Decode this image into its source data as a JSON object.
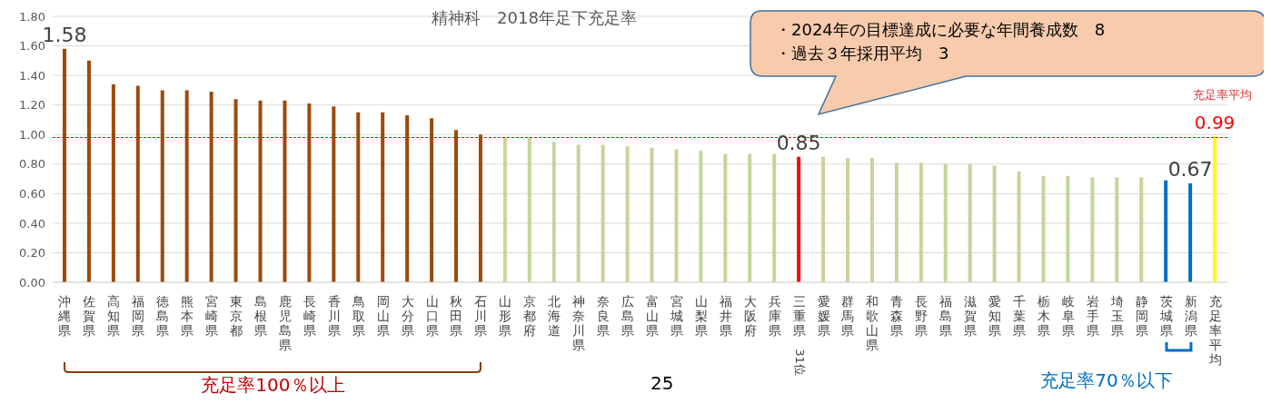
{
  "chart_data": {
    "type": "bar",
    "title": "精神科　2018年足下充足率",
    "categories": [
      "沖縄県",
      "佐賀県",
      "高知県",
      "福岡県",
      "徳島県",
      "熊本県",
      "宮崎県",
      "東京都",
      "島根県",
      "鹿児島県",
      "長崎県",
      "香川県",
      "鳥取県",
      "岡山県",
      "大分県",
      "山口県",
      "秋田県",
      "石川県",
      "山形県",
      "京都府",
      "北海道",
      "神奈川県",
      "奈良県",
      "広島県",
      "富山県",
      "宮城県",
      "山梨県",
      "福井県",
      "大阪府",
      "兵庫県",
      "三重県",
      "愛媛県",
      "群馬県",
      "和歌山県",
      "青森県",
      "長野県",
      "福島県",
      "滋賀県",
      "愛知県",
      "千葉県",
      "栃木県",
      "岐阜県",
      "岩手県",
      "埼玉県",
      "静岡県",
      "茨城県",
      "新潟県",
      "充足率平均"
    ],
    "values": [
      1.58,
      1.5,
      1.34,
      1.33,
      1.3,
      1.3,
      1.29,
      1.24,
      1.23,
      1.23,
      1.21,
      1.19,
      1.15,
      1.15,
      1.13,
      1.11,
      1.03,
      1.0,
      0.98,
      0.98,
      0.95,
      0.93,
      0.93,
      0.92,
      0.91,
      0.9,
      0.89,
      0.87,
      0.87,
      0.87,
      0.85,
      0.85,
      0.84,
      0.84,
      0.81,
      0.81,
      0.8,
      0.8,
      0.79,
      0.75,
      0.72,
      0.72,
      0.71,
      0.71,
      0.71,
      0.69,
      0.67,
      0.99
    ],
    "colors": [
      "#9c4a0c",
      "#9c4a0c",
      "#9c4a0c",
      "#9c4a0c",
      "#9c4a0c",
      "#9c4a0c",
      "#9c4a0c",
      "#9c4a0c",
      "#9c4a0c",
      "#9c4a0c",
      "#9c4a0c",
      "#9c4a0c",
      "#9c4a0c",
      "#9c4a0c",
      "#9c4a0c",
      "#9c4a0c",
      "#9c4a0c",
      "#9c4a0c",
      "#c3d69b",
      "#c3d69b",
      "#c3d69b",
      "#c3d69b",
      "#c3d69b",
      "#c3d69b",
      "#c3d69b",
      "#c3d69b",
      "#c3d69b",
      "#c3d69b",
      "#c3d69b",
      "#c3d69b",
      "#ff0000",
      "#c3d69b",
      "#c3d69b",
      "#c3d69b",
      "#c3d69b",
      "#c3d69b",
      "#c3d69b",
      "#c3d69b",
      "#c3d69b",
      "#c3d69b",
      "#c3d69b",
      "#c3d69b",
      "#c3d69b",
      "#c3d69b",
      "#c3d69b",
      "#0070c0",
      "#0070c0",
      "#ffff00"
    ],
    "value_labels": [
      "1.58",
      null,
      null,
      null,
      null,
      null,
      null,
      null,
      null,
      null,
      null,
      null,
      null,
      null,
      null,
      null,
      null,
      null,
      null,
      null,
      null,
      null,
      null,
      null,
      null,
      null,
      null,
      null,
      null,
      null,
      "0.85",
      null,
      null,
      null,
      null,
      null,
      null,
      null,
      null,
      null,
      null,
      null,
      null,
      null,
      null,
      null,
      "0.67",
      "0.99"
    ],
    "ylim": [
      0,
      1.8
    ],
    "yticks": [
      {
        "value": 0,
        "label": "0.00"
      },
      {
        "value": 0.2,
        "label": "0.20"
      },
      {
        "value": 0.4,
        "label": "0.40"
      },
      {
        "value": 0.6,
        "label": "0.60"
      },
      {
        "value": 0.8,
        "label": "0.80"
      },
      {
        "value": 1,
        "label": "1.00"
      },
      {
        "value": 1.2,
        "label": "1.20"
      },
      {
        "value": 1.4,
        "label": "1.40"
      },
      {
        "value": 1.6,
        "label": "1.60"
      },
      {
        "value": 1.8,
        "label": "1.80"
      }
    ],
    "grid": "y",
    "ref_lines": [
      {
        "axis": "y",
        "value": 0.98,
        "color": "#ff0000",
        "line_style": "dashed"
      }
    ],
    "annotations": [
      "・2024年の目標達成に必要な年間養成数　8",
      "・過去３年採用平均　3",
      "充足率平均",
      "充足率100％以上",
      "充足率70％以下",
      "31位",
      "25"
    ]
  }
}
